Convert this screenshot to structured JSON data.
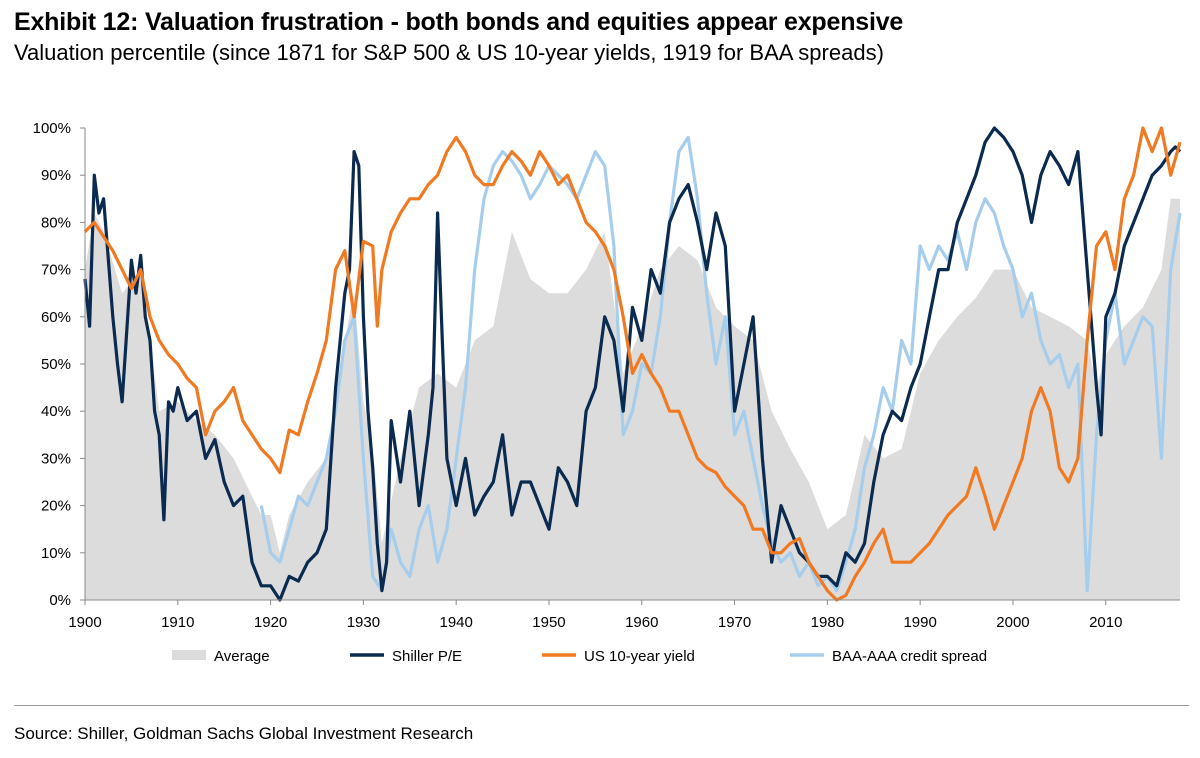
{
  "title": "Exhibit 12: Valuation frustration - both bonds and equities appear expensive",
  "subtitle": "Valuation percentile (since 1871 for S&P 500 & US 10-year yields, 1919 for BAA spreads)",
  "source": "Source: Shiller, Goldman Sachs Global Investment Research",
  "colors": {
    "average": "#dcdcdc",
    "shiller": "#0b2a4f",
    "yield": "#f07a22",
    "credit": "#a7cdec",
    "axis": "#8a8a8a"
  },
  "chart_data": {
    "type": "line",
    "xlim": [
      1900,
      2018
    ],
    "ylim": [
      0,
      100
    ],
    "x_ticks": [
      1900,
      1910,
      1920,
      1930,
      1940,
      1950,
      1960,
      1970,
      1980,
      1990,
      2000,
      2010
    ],
    "y_ticks": [
      {
        "value": 0,
        "label": "0%"
      },
      {
        "value": 10,
        "label": "10%"
      },
      {
        "value": 20,
        "label": "20%"
      },
      {
        "value": 30,
        "label": "30%"
      },
      {
        "value": 40,
        "label": "40%"
      },
      {
        "value": 50,
        "label": "50%"
      },
      {
        "value": 60,
        "label": "60%"
      },
      {
        "value": 70,
        "label": "70%"
      },
      {
        "value": 80,
        "label": "80%"
      },
      {
        "value": 90,
        "label": "90%"
      },
      {
        "value": 100,
        "label": "100%"
      }
    ],
    "legend": [
      "Average",
      "Shiller P/E",
      "US 10-year yield",
      "BAA-AAA credit spread"
    ],
    "legend_position": "bottom",
    "series": [
      {
        "name": "Average",
        "kind": "area",
        "color_key": "average",
        "x": [
          1900,
          1901,
          1902,
          1904,
          1906,
          1908,
          1910,
          1912,
          1914,
          1916,
          1918,
          1919,
          1920,
          1921,
          1922,
          1924,
          1926,
          1928,
          1929,
          1930,
          1931,
          1932,
          1934,
          1936,
          1938,
          1940,
          1942,
          1944,
          1946,
          1948,
          1950,
          1952,
          1954,
          1956,
          1958,
          1960,
          1962,
          1964,
          1966,
          1968,
          1970,
          1972,
          1974,
          1976,
          1978,
          1980,
          1982,
          1984,
          1986,
          1988,
          1990,
          1992,
          1994,
          1996,
          1998,
          2000,
          2002,
          2004,
          2006,
          2008,
          2009,
          2010,
          2012,
          2014,
          2016,
          2017,
          2018
        ],
        "y": [
          70,
          82,
          78,
          65,
          70,
          40,
          42,
          38,
          35,
          30,
          22,
          18,
          18,
          10,
          18,
          25,
          30,
          55,
          65,
          42,
          32,
          12,
          30,
          45,
          48,
          45,
          55,
          58,
          78,
          68,
          65,
          65,
          70,
          78,
          48,
          58,
          70,
          75,
          72,
          62,
          58,
          55,
          40,
          32,
          25,
          15,
          18,
          35,
          30,
          32,
          48,
          55,
          60,
          64,
          70,
          70,
          62,
          60,
          58,
          55,
          45,
          52,
          58,
          62,
          70,
          85,
          85
        ]
      },
      {
        "name": "Shiller P/E",
        "kind": "line",
        "color_key": "shiller",
        "x": [
          1900,
          1900.5,
          1901,
          1901.5,
          1902,
          1903,
          1903.5,
          1904,
          1905,
          1905.5,
          1906,
          1906.5,
          1907,
          1907.5,
          1908,
          1908.5,
          1909,
          1909.5,
          1910,
          1911,
          1912,
          1913,
          1914,
          1915,
          1916,
          1917,
          1918,
          1919,
          1920,
          1921,
          1922,
          1923,
          1924,
          1925,
          1926,
          1927,
          1928,
          1928.5,
          1929,
          1929.5,
          1930,
          1930.5,
          1931,
          1931.5,
          1932,
          1932.5,
          1933,
          1934,
          1935,
          1936,
          1937,
          1937.5,
          1938,
          1938.5,
          1939,
          1940,
          1941,
          1942,
          1943,
          1944,
          1945,
          1946,
          1947,
          1948,
          1949,
          1950,
          1951,
          1952,
          1953,
          1954,
          1955,
          1956,
          1957,
          1958,
          1959,
          1960,
          1961,
          1962,
          1963,
          1964,
          1965,
          1966,
          1967,
          1968,
          1969,
          1970,
          1971,
          1972,
          1973,
          1974,
          1975,
          1976,
          1977,
          1978,
          1979,
          1980,
          1981,
          1982,
          1983,
          1984,
          1985,
          1986,
          1987,
          1988,
          1989,
          1990,
          1991,
          1992,
          1993,
          1994,
          1995,
          1996,
          1997,
          1998,
          1999,
          2000,
          2001,
          2002,
          2003,
          2004,
          2005,
          2006,
          2007,
          2008,
          2009,
          2009.5,
          2010,
          2011,
          2012,
          2013,
          2014,
          2015,
          2016,
          2017,
          2017.5,
          2018
        ],
        "y": [
          68,
          58,
          90,
          82,
          85,
          60,
          50,
          42,
          72,
          65,
          73,
          60,
          55,
          40,
          35,
          17,
          42,
          40,
          45,
          38,
          40,
          30,
          34,
          25,
          20,
          22,
          8,
          3,
          3,
          0,
          5,
          4,
          8,
          10,
          15,
          45,
          65,
          70,
          95,
          92,
          60,
          40,
          28,
          12,
          2,
          8,
          38,
          25,
          40,
          20,
          35,
          45,
          82,
          55,
          30,
          20,
          30,
          18,
          22,
          25,
          35,
          18,
          25,
          25,
          20,
          15,
          28,
          25,
          20,
          40,
          45,
          60,
          55,
          40,
          62,
          55,
          70,
          65,
          80,
          85,
          88,
          80,
          70,
          82,
          75,
          40,
          50,
          60,
          30,
          8,
          20,
          15,
          10,
          8,
          5,
          5,
          3,
          10,
          8,
          12,
          25,
          35,
          40,
          38,
          45,
          50,
          60,
          70,
          70,
          80,
          85,
          90,
          97,
          100,
          98,
          95,
          90,
          80,
          90,
          95,
          92,
          88,
          95,
          70,
          45,
          35,
          60,
          65,
          75,
          80,
          85,
          90,
          92,
          95,
          96,
          95
        ]
      },
      {
        "name": "US 10-year yield",
        "kind": "line",
        "color_key": "yield",
        "x": [
          1900,
          1901,
          1902,
          1903,
          1904,
          1905,
          1906,
          1907,
          1908,
          1909,
          1910,
          1911,
          1912,
          1913,
          1914,
          1915,
          1916,
          1917,
          1918,
          1919,
          1920,
          1921,
          1922,
          1923,
          1924,
          1925,
          1926,
          1927,
          1928,
          1929,
          1930,
          1931,
          1931.5,
          1932,
          1933,
          1934,
          1935,
          1936,
          1937,
          1938,
          1939,
          1940,
          1941,
          1942,
          1943,
          1944,
          1945,
          1946,
          1947,
          1948,
          1949,
          1950,
          1951,
          1952,
          1953,
          1954,
          1955,
          1956,
          1957,
          1958,
          1959,
          1960,
          1961,
          1962,
          1963,
          1964,
          1965,
          1966,
          1967,
          1968,
          1969,
          1970,
          1971,
          1972,
          1973,
          1974,
          1975,
          1976,
          1977,
          1978,
          1979,
          1980,
          1981,
          1982,
          1983,
          1984,
          1985,
          1986,
          1987,
          1988,
          1989,
          1990,
          1991,
          1992,
          1993,
          1994,
          1995,
          1996,
          1997,
          1998,
          1999,
          2000,
          2001,
          2002,
          2003,
          2004,
          2005,
          2006,
          2007,
          2008,
          2009,
          2010,
          2011,
          2012,
          2013,
          2014,
          2015,
          2016,
          2017,
          2018
        ],
        "y": [
          78,
          80,
          77,
          74,
          70,
          66,
          70,
          60,
          55,
          52,
          50,
          47,
          45,
          35,
          40,
          42,
          45,
          38,
          35,
          32,
          30,
          27,
          36,
          35,
          42,
          48,
          55,
          70,
          74,
          60,
          76,
          75,
          58,
          70,
          78,
          82,
          85,
          85,
          88,
          90,
          95,
          98,
          95,
          90,
          88,
          88,
          92,
          95,
          93,
          90,
          95,
          92,
          88,
          90,
          85,
          80,
          78,
          75,
          70,
          60,
          48,
          52,
          48,
          45,
          40,
          40,
          35,
          30,
          28,
          27,
          24,
          22,
          20,
          15,
          15,
          10,
          10,
          12,
          13,
          8,
          5,
          2,
          0,
          1,
          5,
          8,
          12,
          15,
          8,
          8,
          8,
          10,
          12,
          15,
          18,
          20,
          22,
          28,
          22,
          15,
          20,
          25,
          30,
          40,
          45,
          40,
          28,
          25,
          30,
          55,
          75,
          78,
          70,
          85,
          90,
          100,
          95,
          100,
          90,
          97
        ]
      },
      {
        "name": "BAA-AAA credit spread",
        "kind": "line",
        "color_key": "credit",
        "x": [
          1919,
          1920,
          1921,
          1922,
          1923,
          1924,
          1925,
          1926,
          1927,
          1928,
          1929,
          1930,
          1931,
          1932,
          1933,
          1934,
          1935,
          1936,
          1937,
          1938,
          1939,
          1940,
          1941,
          1942,
          1943,
          1944,
          1945,
          1946,
          1947,
          1948,
          1949,
          1950,
          1951,
          1952,
          1953,
          1954,
          1955,
          1956,
          1957,
          1958,
          1959,
          1960,
          1961,
          1962,
          1963,
          1964,
          1965,
          1966,
          1967,
          1968,
          1969,
          1970,
          1971,
          1972,
          1973,
          1974,
          1975,
          1976,
          1977,
          1978,
          1979,
          1980,
          1981,
          1982,
          1983,
          1984,
          1985,
          1986,
          1987,
          1988,
          1989,
          1990,
          1991,
          1992,
          1993,
          1994,
          1995,
          1996,
          1997,
          1998,
          1999,
          2000,
          2001,
          2002,
          2003,
          2004,
          2005,
          2006,
          2007,
          2008,
          2009,
          2010,
          2011,
          2012,
          2013,
          2014,
          2015,
          2016,
          2017,
          2018
        ],
        "y": [
          20,
          10,
          8,
          15,
          22,
          20,
          25,
          30,
          40,
          55,
          60,
          30,
          5,
          2,
          15,
          8,
          5,
          15,
          20,
          8,
          15,
          30,
          45,
          70,
          85,
          92,
          95,
          93,
          90,
          85,
          88,
          92,
          90,
          88,
          85,
          90,
          95,
          92,
          75,
          35,
          40,
          50,
          48,
          60,
          80,
          95,
          98,
          85,
          65,
          50,
          60,
          35,
          40,
          30,
          20,
          12,
          8,
          10,
          5,
          8,
          3,
          5,
          2,
          8,
          15,
          28,
          35,
          45,
          40,
          55,
          50,
          75,
          70,
          75,
          72,
          78,
          70,
          80,
          85,
          82,
          75,
          70,
          60,
          65,
          55,
          50,
          52,
          45,
          50,
          2,
          35,
          55,
          65,
          50,
          55,
          60,
          58,
          30,
          70,
          82
        ]
      }
    ]
  }
}
